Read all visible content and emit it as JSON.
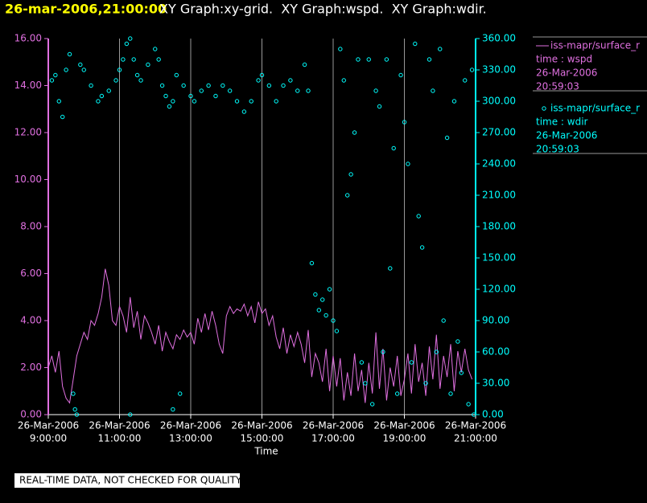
{
  "chart_data": {
    "type": "line",
    "title": "26-mar-2006,21:00:00",
    "subtitle": "XY Graph:xy-grid.  XY Graph:wspd.  XY Graph:wdir.",
    "x_label": "Time",
    "footer": "REAL-TIME DATA, NOT CHECKED FOR QUALITY",
    "grid": true,
    "xlim": [
      9,
      21
    ],
    "xticks": [
      {
        "value": 9,
        "label": [
          "26-Mar-2006",
          "9:00:00"
        ]
      },
      {
        "value": 11,
        "label": [
          "26-Mar-2006",
          "11:00:00"
        ]
      },
      {
        "value": 13,
        "label": [
          "26-Mar-2006",
          "13:00:00"
        ]
      },
      {
        "value": 15,
        "label": [
          "26-Mar-2006",
          "15:00:00"
        ]
      },
      {
        "value": 17,
        "label": [
          "26-Mar-2006",
          "17:00:00"
        ]
      },
      {
        "value": 19,
        "label": [
          "26-Mar-2006",
          "19:00:00"
        ]
      },
      {
        "value": 21,
        "label": [
          "26-Mar-2006",
          "21:00:00"
        ]
      }
    ],
    "ylim": [
      0,
      16
    ],
    "yticks": [
      {
        "value": 0,
        "label": "0.00"
      },
      {
        "value": 2,
        "label": "2.00"
      },
      {
        "value": 4,
        "label": "4.00"
      },
      {
        "value": 6,
        "label": "6.00"
      },
      {
        "value": 8,
        "label": "8.00"
      },
      {
        "value": 10,
        "label": "10.00"
      },
      {
        "value": 12,
        "label": "12.00"
      },
      {
        "value": 14,
        "label": "14.00"
      },
      {
        "value": 16,
        "label": "16.00"
      }
    ],
    "y2lim": [
      0,
      360
    ],
    "y2ticks": [
      {
        "value": 0,
        "label": "0.00"
      },
      {
        "value": 30,
        "label": "30.00"
      },
      {
        "value": 60,
        "label": "60.00"
      },
      {
        "value": 90,
        "label": "90.00"
      },
      {
        "value": 120,
        "label": "120.00"
      },
      {
        "value": 150,
        "label": "150.00"
      },
      {
        "value": 180,
        "label": "180.00"
      },
      {
        "value": 210,
        "label": "210.00"
      },
      {
        "value": 240,
        "label": "240.00"
      },
      {
        "value": 270,
        "label": "270.00"
      },
      {
        "value": 300,
        "label": "300.00"
      },
      {
        "value": 330,
        "label": "330.00"
      },
      {
        "value": 360,
        "label": "360.00"
      }
    ],
    "series": [
      {
        "name": "iss-mapr/surface_r",
        "type": "line",
        "color": "#e070e0",
        "legend_text": [
          "time : wspd",
          "26-Mar-2006",
          "20:59:03"
        ],
        "x": [
          9.0,
          9.1,
          9.2,
          9.3,
          9.4,
          9.5,
          9.6,
          9.7,
          9.8,
          9.9,
          10.0,
          10.1,
          10.2,
          10.3,
          10.4,
          10.5,
          10.6,
          10.7,
          10.8,
          10.9,
          11.0,
          11.1,
          11.2,
          11.3,
          11.4,
          11.5,
          11.6,
          11.7,
          11.8,
          11.9,
          12.0,
          12.1,
          12.2,
          12.3,
          12.4,
          12.5,
          12.6,
          12.7,
          12.8,
          12.9,
          13.0,
          13.1,
          13.2,
          13.3,
          13.4,
          13.5,
          13.6,
          13.7,
          13.8,
          13.9,
          14.0,
          14.1,
          14.2,
          14.3,
          14.4,
          14.5,
          14.6,
          14.7,
          14.8,
          14.9,
          15.0,
          15.1,
          15.2,
          15.3,
          15.4,
          15.5,
          15.6,
          15.7,
          15.8,
          15.9,
          16.0,
          16.1,
          16.2,
          16.3,
          16.4,
          16.5,
          16.6,
          16.7,
          16.8,
          16.9,
          17.0,
          17.1,
          17.2,
          17.3,
          17.4,
          17.5,
          17.6,
          17.7,
          17.8,
          17.9,
          18.0,
          18.1,
          18.2,
          18.3,
          18.4,
          18.5,
          18.6,
          18.7,
          18.8,
          18.9,
          19.0,
          19.1,
          19.2,
          19.3,
          19.4,
          19.5,
          19.6,
          19.7,
          19.8,
          19.9,
          20.0,
          20.1,
          20.2,
          20.3,
          20.4,
          20.5,
          20.6,
          20.7,
          20.8,
          20.9
        ],
        "values": [
          2.0,
          2.5,
          1.8,
          2.7,
          1.2,
          0.7,
          0.5,
          1.5,
          2.5,
          3.0,
          3.5,
          3.2,
          4.0,
          3.8,
          4.3,
          5.0,
          6.2,
          5.5,
          4.0,
          3.8,
          4.6,
          4.2,
          3.5,
          5.0,
          3.7,
          4.4,
          3.2,
          4.2,
          3.9,
          3.5,
          3.0,
          3.8,
          2.7,
          3.5,
          3.1,
          2.8,
          3.4,
          3.2,
          3.6,
          3.3,
          3.5,
          3.0,
          4.1,
          3.5,
          4.3,
          3.6,
          4.4,
          3.8,
          3.0,
          2.6,
          4.2,
          4.6,
          4.3,
          4.5,
          4.4,
          4.7,
          4.2,
          4.6,
          3.9,
          4.8,
          4.3,
          4.5,
          3.8,
          4.2,
          3.3,
          2.8,
          3.7,
          2.6,
          3.4,
          2.9,
          3.5,
          3.0,
          2.2,
          3.6,
          1.6,
          2.6,
          2.2,
          1.4,
          2.8,
          1.0,
          2.5,
          1.2,
          2.4,
          0.6,
          1.8,
          0.8,
          2.6,
          1.0,
          1.9,
          0.5,
          2.2,
          0.9,
          3.5,
          1.1,
          2.8,
          0.6,
          2.0,
          1.2,
          2.5,
          0.8,
          1.5,
          2.6,
          0.9,
          3.0,
          1.4,
          2.2,
          0.8,
          2.9,
          1.5,
          3.4,
          1.1,
          2.5,
          1.6,
          3.0,
          1.0,
          2.7,
          1.8,
          2.8,
          1.9,
          1.5
        ]
      },
      {
        "name": "iss-mapr/surface_r",
        "type": "scatter",
        "axis": "y2",
        "color": "#00ffff",
        "legend_text": [
          "time : wdir",
          "26-Mar-2006",
          "20:59:03"
        ],
        "x": [
          9.1,
          9.2,
          9.3,
          9.4,
          9.5,
          9.6,
          9.7,
          9.75,
          9.8,
          9.9,
          10.0,
          10.2,
          10.4,
          10.5,
          10.7,
          10.9,
          11.0,
          11.1,
          11.2,
          11.3,
          11.4,
          11.5,
          11.6,
          11.8,
          12.0,
          12.1,
          12.2,
          12.3,
          12.4,
          12.5,
          12.6,
          12.8,
          13.0,
          13.1,
          13.3,
          13.5,
          13.7,
          13.9,
          14.1,
          14.3,
          14.5,
          14.7,
          14.9,
          15.0,
          15.2,
          15.4,
          15.6,
          15.8,
          16.0,
          16.2,
          16.3,
          12.5,
          12.7,
          11.3,
          16.4,
          16.5,
          16.6,
          16.7,
          16.8,
          16.9,
          17.0,
          17.1,
          17.2,
          17.3,
          17.4,
          17.5,
          17.6,
          17.7,
          17.8,
          17.9,
          18.0,
          18.1,
          18.2,
          18.3,
          18.4,
          18.5,
          18.6,
          18.7,
          18.8,
          18.9,
          19.0,
          19.1,
          19.2,
          19.3,
          19.4,
          19.5,
          19.6,
          19.7,
          19.8,
          19.9,
          20.0,
          20.1,
          20.2,
          20.3,
          20.4,
          20.5,
          20.6,
          20.7,
          20.8,
          20.9,
          20.95
        ],
        "values": [
          320,
          325,
          300,
          285,
          330,
          345,
          20,
          5,
          0,
          335,
          330,
          315,
          300,
          305,
          310,
          320,
          330,
          340,
          355,
          360,
          340,
          325,
          320,
          335,
          350,
          340,
          315,
          305,
          295,
          300,
          325,
          315,
          305,
          300,
          310,
          315,
          305,
          315,
          310,
          300,
          290,
          300,
          320,
          325,
          315,
          300,
          315,
          320,
          310,
          335,
          310,
          5,
          20,
          0,
          145,
          115,
          100,
          110,
          95,
          120,
          90,
          80,
          350,
          320,
          210,
          230,
          270,
          340,
          50,
          30,
          340,
          10,
          310,
          295,
          60,
          340,
          140,
          255,
          20,
          325,
          280,
          240,
          50,
          355,
          190,
          160,
          30,
          340,
          310,
          60,
          350,
          90,
          265,
          20,
          300,
          70,
          40,
          320,
          10,
          330,
          0
        ]
      }
    ]
  }
}
